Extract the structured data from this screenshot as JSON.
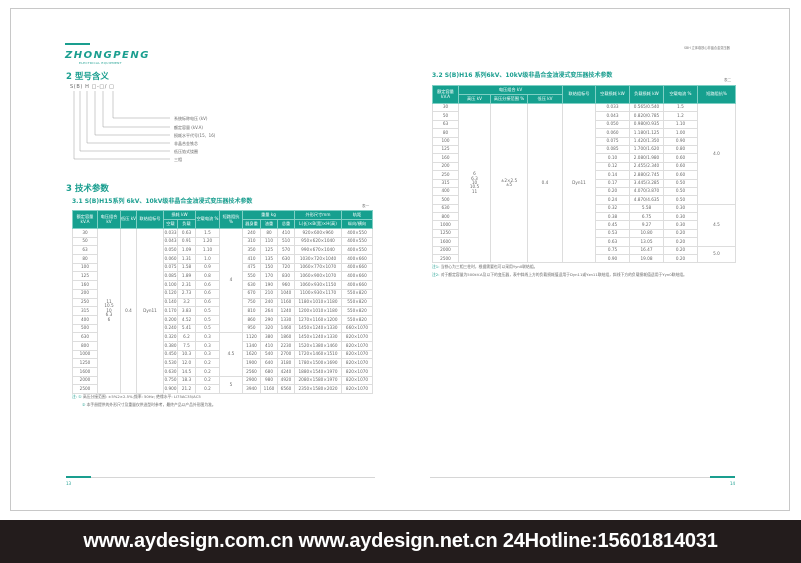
{
  "brand": {
    "logo": "ZHONGPENG",
    "logo_sub": "ELECTRICAL EQUIPMENT",
    "accent": "#1a9e8f"
  },
  "left": {
    "section2": "2 型号含义",
    "model_code": "S(B) H □-□/ □",
    "model_labels": [
      "系统标称电压 (kV)",
      "额定容量 (kV.A)",
      "损耗水平代号(15、16)",
      "非晶合金铁芯",
      "低压箔式绕圈",
      "三相"
    ],
    "section3": "3 技术参数",
    "table_title": "3.1  S(B)H15系列 6kV、10kV级非晶合金油浸式变压器技术参数",
    "table_tag": "表一",
    "headers": {
      "capacity": "额定容量\nkV.A",
      "hv": "电压组合\nkV",
      "lv": "低压\nkV",
      "conn": "联结组标号",
      "loss": "损耗 kW",
      "loss_nl": "空载",
      "loss_ll": "负载",
      "current": "空载电流\n%",
      "impedance": "短路阻抗\n%",
      "weight": "重量 kg",
      "w_body": "器身重",
      "w_oil": "油重",
      "w_total": "总重",
      "dims": "外形尺寸mm",
      "dims_sub": "L(长)×B(宽)×H(高)",
      "gauge": "轨距",
      "gauge_sub": "纵向/横向"
    },
    "hv_value": "11\n10.5\n10\n6.3\n6",
    "lv_value": "0.4",
    "conn_value": "Dyn11",
    "impedance_groups": [
      {
        "value": "4",
        "rows": 12
      },
      {
        "value": "4.5",
        "rows": 5
      },
      {
        "value": "5",
        "rows": 2
      }
    ],
    "rows": [
      [
        "30",
        "0.033",
        "0.63",
        "1.5",
        "240",
        "80",
        "410",
        "920×600×960",
        "400×550"
      ],
      [
        "50",
        "0.043",
        "0.91",
        "1.20",
        "310",
        "110",
        "510",
        "950×620×1040",
        "400×550"
      ],
      [
        "63",
        "0.050",
        "1.09",
        "1.10",
        "350",
        "125",
        "570",
        "990×670×1040",
        "400×550"
      ],
      [
        "80",
        "0.060",
        "1.31",
        "1.0",
        "410",
        "135",
        "630",
        "1030×720×1040",
        "400×660"
      ],
      [
        "100",
        "0.075",
        "1.58",
        "0.9",
        "475",
        "150",
        "720",
        "1060×770×1070",
        "400×660"
      ],
      [
        "125",
        "0.085",
        "1.89",
        "0.8",
        "550",
        "170",
        "830",
        "1060×900×1070",
        "400×660"
      ],
      [
        "160",
        "0.100",
        "2.31",
        "0.6",
        "630",
        "190",
        "960",
        "1060×930×1150",
        "400×660"
      ],
      [
        "200",
        "0.120",
        "2.73",
        "0.6",
        "670",
        "210",
        "1040",
        "1100×930×1170",
        "550×820"
      ],
      [
        "250",
        "0.140",
        "3.2",
        "0.6",
        "750",
        "240",
        "1160",
        "1180×1010×1180",
        "550×820"
      ],
      [
        "315",
        "0.170",
        "3.83",
        "0.5",
        "810",
        "264",
        "1240",
        "1200×1010×1180",
        "550×820"
      ],
      [
        "400",
        "0.200",
        "4.52",
        "0.5",
        "860",
        "290",
        "1330",
        "1270×1160×1200",
        "550×820"
      ],
      [
        "500",
        "0.240",
        "5.41",
        "0.5",
        "950",
        "320",
        "1460",
        "1450×1240×1330",
        "660×1070"
      ],
      [
        "630",
        "0.320",
        "6.2",
        "0.3",
        "1120",
        "380",
        "1860",
        "1450×1240×1330",
        "820×1070"
      ],
      [
        "800",
        "0.380",
        "7.5",
        "0.3",
        "1340",
        "410",
        "2230",
        "1520×1380×1460",
        "820×1070"
      ],
      [
        "1000",
        "0.450",
        "10.3",
        "0.3",
        "1620",
        "540",
        "2700",
        "1720×1460×1510",
        "820×1070"
      ],
      [
        "1250",
        "0.530",
        "12.0",
        "0.2",
        "1900",
        "640",
        "3180",
        "1780×1500×1690",
        "820×1070"
      ],
      [
        "1600",
        "0.630",
        "14.5",
        "0.2",
        "2560",
        "680",
        "4240",
        "1880×1540×1970",
        "820×1070"
      ],
      [
        "2000",
        "0.750",
        "18.3",
        "0.2",
        "2900",
        "980",
        "4920",
        "2080×1580×1970",
        "820×1070"
      ],
      [
        "2500",
        "0.900",
        "21.2",
        "0.2",
        "3940",
        "1160",
        "6560",
        "2350×1580×2020",
        "820×1070"
      ]
    ],
    "note_label": "注: ①",
    "note1": "高压分接范围: ±5%2×2.5%;频率: 50Hz; 绝缘水平: LI75AC35/AC5",
    "note2_label": "②",
    "note2": "本手册提供的外形尺寸及重量仅供选型时参考，最终产品以产品外形图为准。",
    "page": "13"
  },
  "right": {
    "running_head": "SBH 立体卷铁心非晶合金变压器",
    "table_title": "3.2  S(B)H16 系列6kV、10kV级非晶合金油浸式变压器技术参数",
    "table_tag": "表二",
    "headers": {
      "capacity": "额定容量\nkV.A",
      "combo": "电压组合 kV",
      "hv": "高压 kV",
      "tap": "高压分接范围 %",
      "lv": "低压 kV",
      "conn": "联结组标号",
      "nl": "空载损耗 kW",
      "ll": "负载损耗 kW",
      "current": "空载电流 %",
      "impedance": "短路阻抗%"
    },
    "hv_value": "6\n6.3\n10\n10.5\n11",
    "tap_value": "±2×2.5\n±5",
    "lv_value": "0.4",
    "conn_value": "Dyn11",
    "impedance_groups": [
      {
        "value": "4.0",
        "rows": 12
      },
      {
        "value": "4.5",
        "rows": 5
      },
      {
        "value": "5.0",
        "rows": 2
      }
    ],
    "rows": [
      [
        "30",
        "0.033",
        "0.565/0.540",
        "1.5"
      ],
      [
        "50",
        "0.043",
        "0.820/0.785",
        "1.2"
      ],
      [
        "63",
        "0.050",
        "0.980/0.935",
        "1.10"
      ],
      [
        "80",
        "0.060",
        "1.180/1.125",
        "1.00"
      ],
      [
        "100",
        "0.075",
        "1.420/1.350",
        "0.90"
      ],
      [
        "125",
        "0.085",
        "1.700/1.620",
        "0.80"
      ],
      [
        "160",
        "0.10",
        "2.080/1.980",
        "0.60"
      ],
      [
        "200",
        "0.12",
        "2.455/2.340",
        "0.60"
      ],
      [
        "250",
        "0.14",
        "2.880/2.745",
        "0.60"
      ],
      [
        "315",
        "0.17",
        "3.445/3.285",
        "0.50"
      ],
      [
        "400",
        "0.20",
        "4.070/3.870",
        "0.50"
      ],
      [
        "500",
        "0.24",
        "4.870/4.635",
        "0.50"
      ],
      [
        "630",
        "0.32",
        "5.58",
        "0.30"
      ],
      [
        "800",
        "0.38",
        "6.75",
        "0.30"
      ],
      [
        "1000",
        "0.45",
        "9.27",
        "0.30"
      ],
      [
        "1250",
        "0.53",
        "10.80",
        "0.20"
      ],
      [
        "1600",
        "0.63",
        "13.05",
        "0.20"
      ],
      [
        "2000",
        "0.75",
        "16.47",
        "0.20"
      ],
      [
        "2500",
        "0.90",
        "19.08",
        "0.20"
      ]
    ],
    "note1_label": "注1:",
    "note1": "当铁心为三相三柱时，根据需要也可以采用Yyn0联结组。",
    "note2_label": "注2:",
    "note2": "对于额定容量为500kV.A及以下的变压器，表中斜线上方的负载损耗值适用于Dyn11或Yzn11联结组，斜线下方的负载损耗值适用于Yyn0联结组。",
    "page": "14"
  },
  "banner": {
    "text": "www.aydesign.com.cn www.aydesign.net.cn 24Hotline:15601814031"
  }
}
